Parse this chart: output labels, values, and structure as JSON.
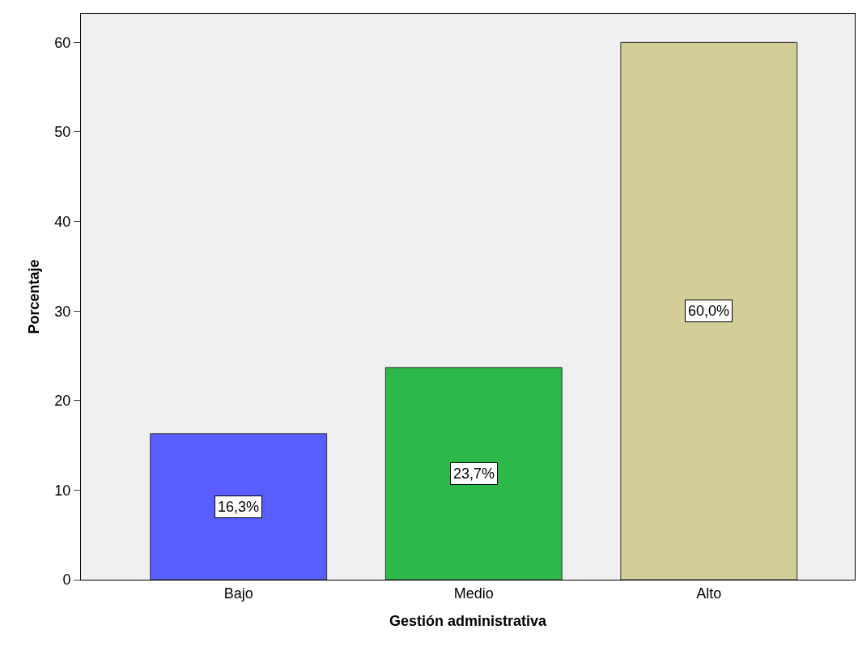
{
  "chart_data": {
    "type": "bar",
    "xlabel": "Gestión administrativa",
    "ylabel": "Porcentaje",
    "categories": [
      "Bajo",
      "Medio",
      "Alto"
    ],
    "values": [
      16.3,
      23.7,
      60.0
    ],
    "colors": [
      "#5a5eff",
      "#2db84a",
      "#d3ce97"
    ],
    "value_labels": [
      "16,3%",
      "23,7%",
      "60,0%"
    ],
    "ylim": [
      0,
      63.2
    ],
    "yticks": [
      0,
      10,
      20,
      30,
      40,
      50,
      60
    ],
    "grid": false
  }
}
